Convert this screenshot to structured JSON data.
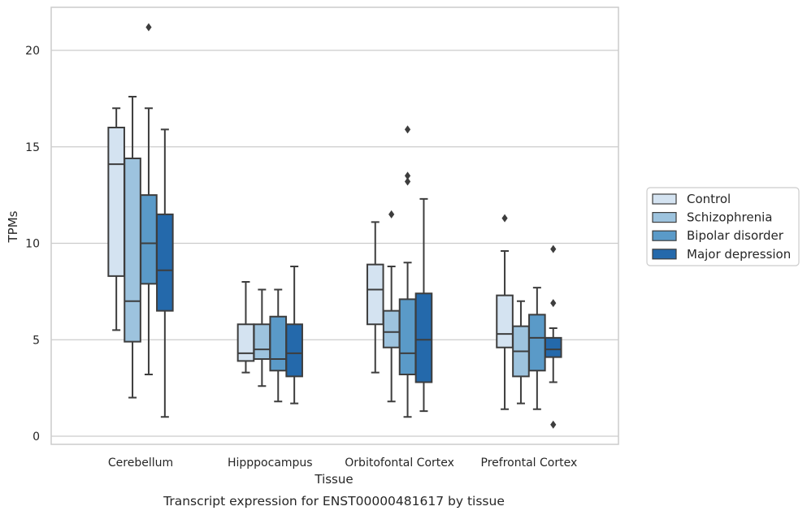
{
  "chart_data": {
    "type": "box",
    "title": "",
    "caption": "Transcript expression for ENST00000481617 by tissue",
    "xlabel": "Tissue",
    "ylabel": "TPMs",
    "ylim": [
      -0.4,
      22.2
    ],
    "yticks": [
      0,
      5,
      10,
      15,
      20
    ],
    "grid": "horizontal",
    "legend_position": "right",
    "categories": [
      "Cerebellum",
      "Hipppocampus",
      "Orbitofontal Cortex",
      "Prefrontal Cortex"
    ],
    "series": [
      {
        "name": "Control",
        "color": "#d4e3f1",
        "boxes": [
          {
            "whislo": 5.5,
            "q1": 8.3,
            "med": 14.1,
            "q3": 16.0,
            "whishi": 17.0,
            "fliers": []
          },
          {
            "whislo": 3.3,
            "q1": 3.9,
            "med": 4.3,
            "q3": 5.8,
            "whishi": 8.0,
            "fliers": []
          },
          {
            "whislo": 3.3,
            "q1": 5.8,
            "med": 7.6,
            "q3": 8.9,
            "whishi": 11.1,
            "fliers": []
          },
          {
            "whislo": 1.4,
            "q1": 4.6,
            "med": 5.3,
            "q3": 7.3,
            "whishi": 9.6,
            "fliers": [
              11.3
            ]
          }
        ]
      },
      {
        "name": "Schizophrenia",
        "color": "#9dc3de",
        "boxes": [
          {
            "whislo": 2.0,
            "q1": 4.9,
            "med": 7.0,
            "q3": 14.4,
            "whishi": 17.6,
            "fliers": []
          },
          {
            "whislo": 2.6,
            "q1": 4.0,
            "med": 4.5,
            "q3": 5.8,
            "whishi": 7.6,
            "fliers": []
          },
          {
            "whislo": 1.8,
            "q1": 4.6,
            "med": 5.4,
            "q3": 6.5,
            "whishi": 8.8,
            "fliers": [
              11.5
            ]
          },
          {
            "whislo": 1.7,
            "q1": 3.1,
            "med": 4.4,
            "q3": 5.7,
            "whishi": 7.0,
            "fliers": []
          }
        ]
      },
      {
        "name": "Bipolar disorder",
        "color": "#5a9ac8",
        "boxes": [
          {
            "whislo": 3.2,
            "q1": 7.9,
            "med": 10.0,
            "q3": 12.5,
            "whishi": 17.0,
            "fliers": [
              21.2
            ]
          },
          {
            "whislo": 1.8,
            "q1": 3.4,
            "med": 4.0,
            "q3": 6.2,
            "whishi": 7.6,
            "fliers": []
          },
          {
            "whislo": 1.0,
            "q1": 3.2,
            "med": 4.3,
            "q3": 7.1,
            "whishi": 9.0,
            "fliers": [
              13.2,
              13.5,
              15.9
            ]
          },
          {
            "whislo": 1.4,
            "q1": 3.4,
            "med": 5.1,
            "q3": 6.3,
            "whishi": 7.7,
            "fliers": []
          }
        ]
      },
      {
        "name": "Major depression",
        "color": "#2469ab",
        "boxes": [
          {
            "whislo": 1.0,
            "q1": 6.5,
            "med": 8.6,
            "q3": 11.5,
            "whishi": 15.9,
            "fliers": []
          },
          {
            "whislo": 1.7,
            "q1": 3.1,
            "med": 4.3,
            "q3": 5.8,
            "whishi": 8.8,
            "fliers": []
          },
          {
            "whislo": 1.3,
            "q1": 2.8,
            "med": 5.0,
            "q3": 7.4,
            "whishi": 12.3,
            "fliers": []
          },
          {
            "whislo": 2.8,
            "q1": 4.1,
            "med": 4.5,
            "q3": 5.1,
            "whishi": 5.6,
            "fliers": [
              0.6,
              6.9,
              9.7
            ]
          }
        ]
      }
    ]
  }
}
